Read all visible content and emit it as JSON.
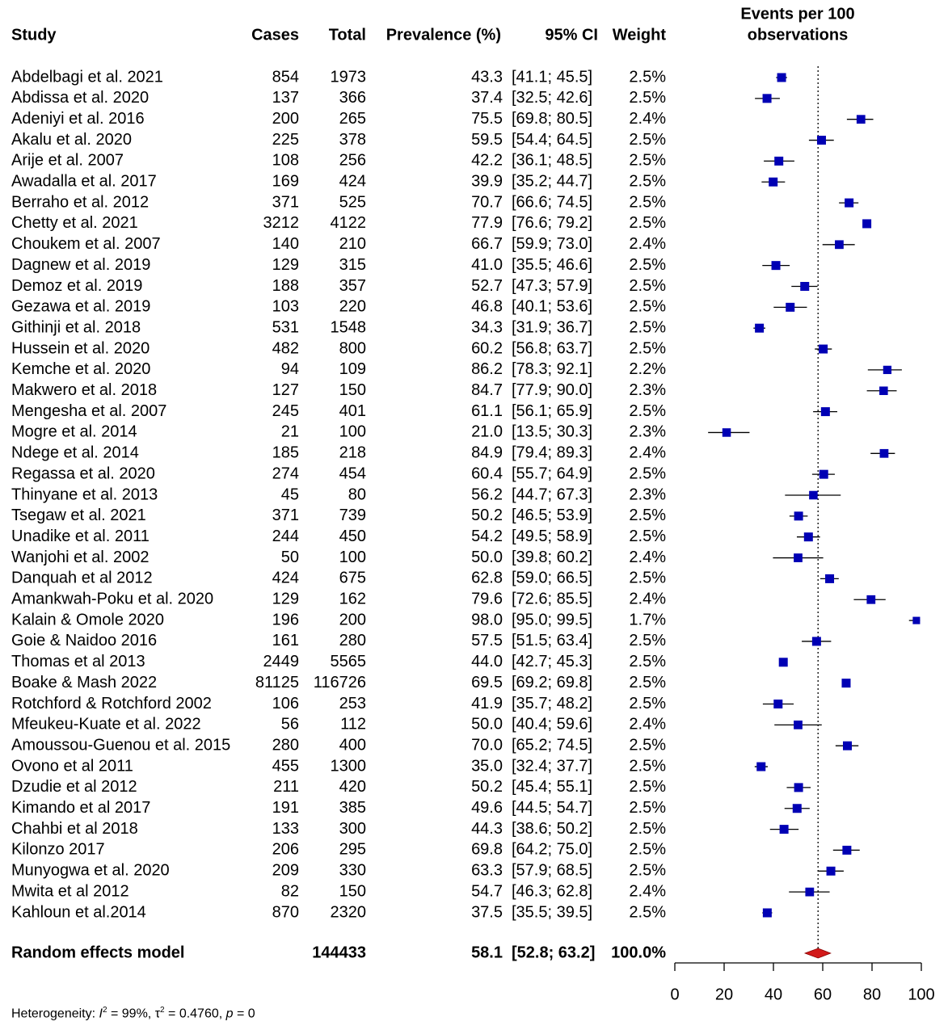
{
  "chart_data": {
    "type": "forest",
    "columns": {
      "study": "Study",
      "cases": "Cases",
      "total": "Total",
      "prevalence": "Prevalence (%)",
      "ci": "95% CI",
      "weight": "Weight"
    },
    "plot_title": [
      "Events per 100",
      "observations"
    ],
    "xlabel": "Prevalence (%)",
    "xlim": [
      0,
      100
    ],
    "xticks": [
      0,
      20,
      40,
      60,
      80,
      100
    ],
    "reference_line": 58.1,
    "colors": {
      "box": "#0000b4",
      "summary": "#d21a1a",
      "line": "#000000"
    },
    "studies": [
      {
        "study": "Abdelbagi et al. 2021",
        "cases": "854",
        "total": "1973",
        "prev": 43.3,
        "lo": 41.1,
        "hi": 45.5,
        "prev_text": "43.3",
        "ci_text": "[41.1; 45.5]",
        "weight": "2.5%"
      },
      {
        "study": "Abdissa et al. 2020",
        "cases": "137",
        "total": "366",
        "prev": 37.4,
        "lo": 32.5,
        "hi": 42.6,
        "prev_text": "37.4",
        "ci_text": "[32.5; 42.6]",
        "weight": "2.5%"
      },
      {
        "study": "Adeniyi et al. 2016",
        "cases": "200",
        "total": "265",
        "prev": 75.5,
        "lo": 69.8,
        "hi": 80.5,
        "prev_text": "75.5",
        "ci_text": "[69.8; 80.5]",
        "weight": "2.4%"
      },
      {
        "study": "Akalu et al. 2020",
        "cases": "225",
        "total": "378",
        "prev": 59.5,
        "lo": 54.4,
        "hi": 64.5,
        "prev_text": "59.5",
        "ci_text": "[54.4; 64.5]",
        "weight": "2.5%"
      },
      {
        "study": "Arije et al. 2007",
        "cases": "108",
        "total": "256",
        "prev": 42.2,
        "lo": 36.1,
        "hi": 48.5,
        "prev_text": "42.2",
        "ci_text": "[36.1; 48.5]",
        "weight": "2.5%"
      },
      {
        "study": "Awadalla et al. 2017",
        "cases": "169",
        "total": "424",
        "prev": 39.9,
        "lo": 35.2,
        "hi": 44.7,
        "prev_text": "39.9",
        "ci_text": "[35.2; 44.7]",
        "weight": "2.5%"
      },
      {
        "study": "Berraho et al. 2012",
        "cases": "371",
        "total": "525",
        "prev": 70.7,
        "lo": 66.6,
        "hi": 74.5,
        "prev_text": "70.7",
        "ci_text": "[66.6; 74.5]",
        "weight": "2.5%"
      },
      {
        "study": "Chetty et al. 2021",
        "cases": "3212",
        "total": "4122",
        "prev": 77.9,
        "lo": 76.6,
        "hi": 79.2,
        "prev_text": "77.9",
        "ci_text": "[76.6; 79.2]",
        "weight": "2.5%"
      },
      {
        "study": "Choukem et al. 2007",
        "cases": "140",
        "total": "210",
        "prev": 66.7,
        "lo": 59.9,
        "hi": 73.0,
        "prev_text": "66.7",
        "ci_text": "[59.9; 73.0]",
        "weight": "2.4%"
      },
      {
        "study": "Dagnew et al. 2019",
        "cases": "129",
        "total": "315",
        "prev": 41.0,
        "lo": 35.5,
        "hi": 46.6,
        "prev_text": "41.0",
        "ci_text": "[35.5; 46.6]",
        "weight": "2.5%"
      },
      {
        "study": "Demoz et al. 2019",
        "cases": "188",
        "total": "357",
        "prev": 52.7,
        "lo": 47.3,
        "hi": 57.9,
        "prev_text": "52.7",
        "ci_text": "[47.3; 57.9]",
        "weight": "2.5%"
      },
      {
        "study": "Gezawa et al. 2019",
        "cases": "103",
        "total": "220",
        "prev": 46.8,
        "lo": 40.1,
        "hi": 53.6,
        "prev_text": "46.8",
        "ci_text": "[40.1; 53.6]",
        "weight": "2.5%"
      },
      {
        "study": "Githinji et al. 2018",
        "cases": "531",
        "total": "1548",
        "prev": 34.3,
        "lo": 31.9,
        "hi": 36.7,
        "prev_text": "34.3",
        "ci_text": "[31.9; 36.7]",
        "weight": "2.5%"
      },
      {
        "study": "Hussein et al. 2020",
        "cases": "482",
        "total": "800",
        "prev": 60.2,
        "lo": 56.8,
        "hi": 63.7,
        "prev_text": "60.2",
        "ci_text": "[56.8; 63.7]",
        "weight": "2.5%"
      },
      {
        "study": "Kemche et al. 2020",
        "cases": "94",
        "total": "109",
        "prev": 86.2,
        "lo": 78.3,
        "hi": 92.1,
        "prev_text": "86.2",
        "ci_text": "[78.3; 92.1]",
        "weight": "2.2%"
      },
      {
        "study": "Makwero et al. 2018",
        "cases": "127",
        "total": "150",
        "prev": 84.7,
        "lo": 77.9,
        "hi": 90.0,
        "prev_text": "84.7",
        "ci_text": "[77.9; 90.0]",
        "weight": "2.3%"
      },
      {
        "study": "Mengesha et al. 2007",
        "cases": "245",
        "total": "401",
        "prev": 61.1,
        "lo": 56.1,
        "hi": 65.9,
        "prev_text": "61.1",
        "ci_text": "[56.1; 65.9]",
        "weight": "2.5%"
      },
      {
        "study": "Mogre et al. 2014",
        "cases": "21",
        "total": "100",
        "prev": 21.0,
        "lo": 13.5,
        "hi": 30.3,
        "prev_text": "21.0",
        "ci_text": "[13.5; 30.3]",
        "weight": "2.3%"
      },
      {
        "study": "Ndege et al. 2014",
        "cases": "185",
        "total": "218",
        "prev": 84.9,
        "lo": 79.4,
        "hi": 89.3,
        "prev_text": "84.9",
        "ci_text": "[79.4; 89.3]",
        "weight": "2.4%"
      },
      {
        "study": "Regassa et al. 2020",
        "cases": "274",
        "total": "454",
        "prev": 60.4,
        "lo": 55.7,
        "hi": 64.9,
        "prev_text": "60.4",
        "ci_text": "[55.7; 64.9]",
        "weight": "2.5%"
      },
      {
        "study": "Thinyane et al. 2013",
        "cases": "45",
        "total": "80",
        "prev": 56.2,
        "lo": 44.7,
        "hi": 67.3,
        "prev_text": "56.2",
        "ci_text": "[44.7; 67.3]",
        "weight": "2.3%"
      },
      {
        "study": "Tsegaw et al. 2021",
        "cases": "371",
        "total": "739",
        "prev": 50.2,
        "lo": 46.5,
        "hi": 53.9,
        "prev_text": "50.2",
        "ci_text": "[46.5; 53.9]",
        "weight": "2.5%"
      },
      {
        "study": "Unadike et al. 2011",
        "cases": "244",
        "total": "450",
        "prev": 54.2,
        "lo": 49.5,
        "hi": 58.9,
        "prev_text": "54.2",
        "ci_text": "[49.5; 58.9]",
        "weight": "2.5%"
      },
      {
        "study": "Wanjohi et al. 2002",
        "cases": "50",
        "total": "100",
        "prev": 50.0,
        "lo": 39.8,
        "hi": 60.2,
        "prev_text": "50.0",
        "ci_text": "[39.8; 60.2]",
        "weight": "2.4%"
      },
      {
        "study": "Danquah et al 2012",
        "cases": "424",
        "total": "675",
        "prev": 62.8,
        "lo": 59.0,
        "hi": 66.5,
        "prev_text": "62.8",
        "ci_text": "[59.0; 66.5]",
        "weight": "2.5%"
      },
      {
        "study": "Amankwah-Poku et al. 2020",
        "cases": "129",
        "total": "162",
        "prev": 79.6,
        "lo": 72.6,
        "hi": 85.5,
        "prev_text": "79.6",
        "ci_text": "[72.6; 85.5]",
        "weight": "2.4%"
      },
      {
        "study": "Kalain & Omole 2020",
        "cases": "196",
        "total": "200",
        "prev": 98.0,
        "lo": 95.0,
        "hi": 99.5,
        "prev_text": "98.0",
        "ci_text": "[95.0; 99.5]",
        "weight": "1.7%"
      },
      {
        "study": "Goie & Naidoo 2016",
        "cases": "161",
        "total": "280",
        "prev": 57.5,
        "lo": 51.5,
        "hi": 63.4,
        "prev_text": "57.5",
        "ci_text": "[51.5; 63.4]",
        "weight": "2.5%"
      },
      {
        "study": "Thomas et al 2013",
        "cases": "2449",
        "total": "5565",
        "prev": 44.0,
        "lo": 42.7,
        "hi": 45.3,
        "prev_text": "44.0",
        "ci_text": "[42.7; 45.3]",
        "weight": "2.5%"
      },
      {
        "study": "Boake & Mash 2022",
        "cases": "81125",
        "total": "116726",
        "prev": 69.5,
        "lo": 69.2,
        "hi": 69.8,
        "prev_text": "69.5",
        "ci_text": "[69.2; 69.8]",
        "weight": "2.5%"
      },
      {
        "study": "Rotchford & Rotchford 2002",
        "cases": "106",
        "total": "253",
        "prev": 41.9,
        "lo": 35.7,
        "hi": 48.2,
        "prev_text": "41.9",
        "ci_text": "[35.7; 48.2]",
        "weight": "2.5%"
      },
      {
        "study": "Mfeukeu-Kuate et al. 2022",
        "cases": "56",
        "total": "112",
        "prev": 50.0,
        "lo": 40.4,
        "hi": 59.6,
        "prev_text": "50.0",
        "ci_text": "[40.4; 59.6]",
        "weight": "2.4%"
      },
      {
        "study": "Amoussou-Guenou et al. 2015",
        "cases": "280",
        "total": "400",
        "prev": 70.0,
        "lo": 65.2,
        "hi": 74.5,
        "prev_text": "70.0",
        "ci_text": "[65.2; 74.5]",
        "weight": "2.5%"
      },
      {
        "study": "Ovono et al 2011",
        "cases": "455",
        "total": "1300",
        "prev": 35.0,
        "lo": 32.4,
        "hi": 37.7,
        "prev_text": "35.0",
        "ci_text": "[32.4; 37.7]",
        "weight": "2.5%"
      },
      {
        "study": "Dzudie et al 2012",
        "cases": "211",
        "total": "420",
        "prev": 50.2,
        "lo": 45.4,
        "hi": 55.1,
        "prev_text": "50.2",
        "ci_text": "[45.4; 55.1]",
        "weight": "2.5%"
      },
      {
        "study": "Kimando et al 2017",
        "cases": "191",
        "total": "385",
        "prev": 49.6,
        "lo": 44.5,
        "hi": 54.7,
        "prev_text": "49.6",
        "ci_text": "[44.5; 54.7]",
        "weight": "2.5%"
      },
      {
        "study": "Chahbi et al 2018",
        "cases": "133",
        "total": "300",
        "prev": 44.3,
        "lo": 38.6,
        "hi": 50.2,
        "prev_text": "44.3",
        "ci_text": "[38.6; 50.2]",
        "weight": "2.5%"
      },
      {
        "study": "Kilonzo 2017",
        "cases": "206",
        "total": "295",
        "prev": 69.8,
        "lo": 64.2,
        "hi": 75.0,
        "prev_text": "69.8",
        "ci_text": "[64.2; 75.0]",
        "weight": "2.5%"
      },
      {
        "study": "Munyogwa et al. 2020",
        "cases": "209",
        "total": "330",
        "prev": 63.3,
        "lo": 57.9,
        "hi": 68.5,
        "prev_text": "63.3",
        "ci_text": "[57.9; 68.5]",
        "weight": "2.5%"
      },
      {
        "study": "Mwita et al 2012",
        "cases": "82",
        "total": "150",
        "prev": 54.7,
        "lo": 46.3,
        "hi": 62.8,
        "prev_text": "54.7",
        "ci_text": "[46.3; 62.8]",
        "weight": "2.4%"
      },
      {
        "study": "Kahloun et al.2014",
        "cases": "870",
        "total": "2320",
        "prev": 37.5,
        "lo": 35.5,
        "hi": 39.5,
        "prev_text": "37.5",
        "ci_text": "[35.5; 39.5]",
        "weight": "2.5%"
      }
    ],
    "summary": {
      "study": "Random effects model",
      "cases": "",
      "total": "144433",
      "prev": 58.1,
      "lo": 52.8,
      "hi": 63.2,
      "prev_text": "58.1",
      "ci_text": "[52.8; 63.2]",
      "weight": "100.0%"
    },
    "heterogeneity": {
      "label": "Heterogeneity:",
      "i2": "99%",
      "tau2": "0.4760",
      "p": "0"
    }
  }
}
